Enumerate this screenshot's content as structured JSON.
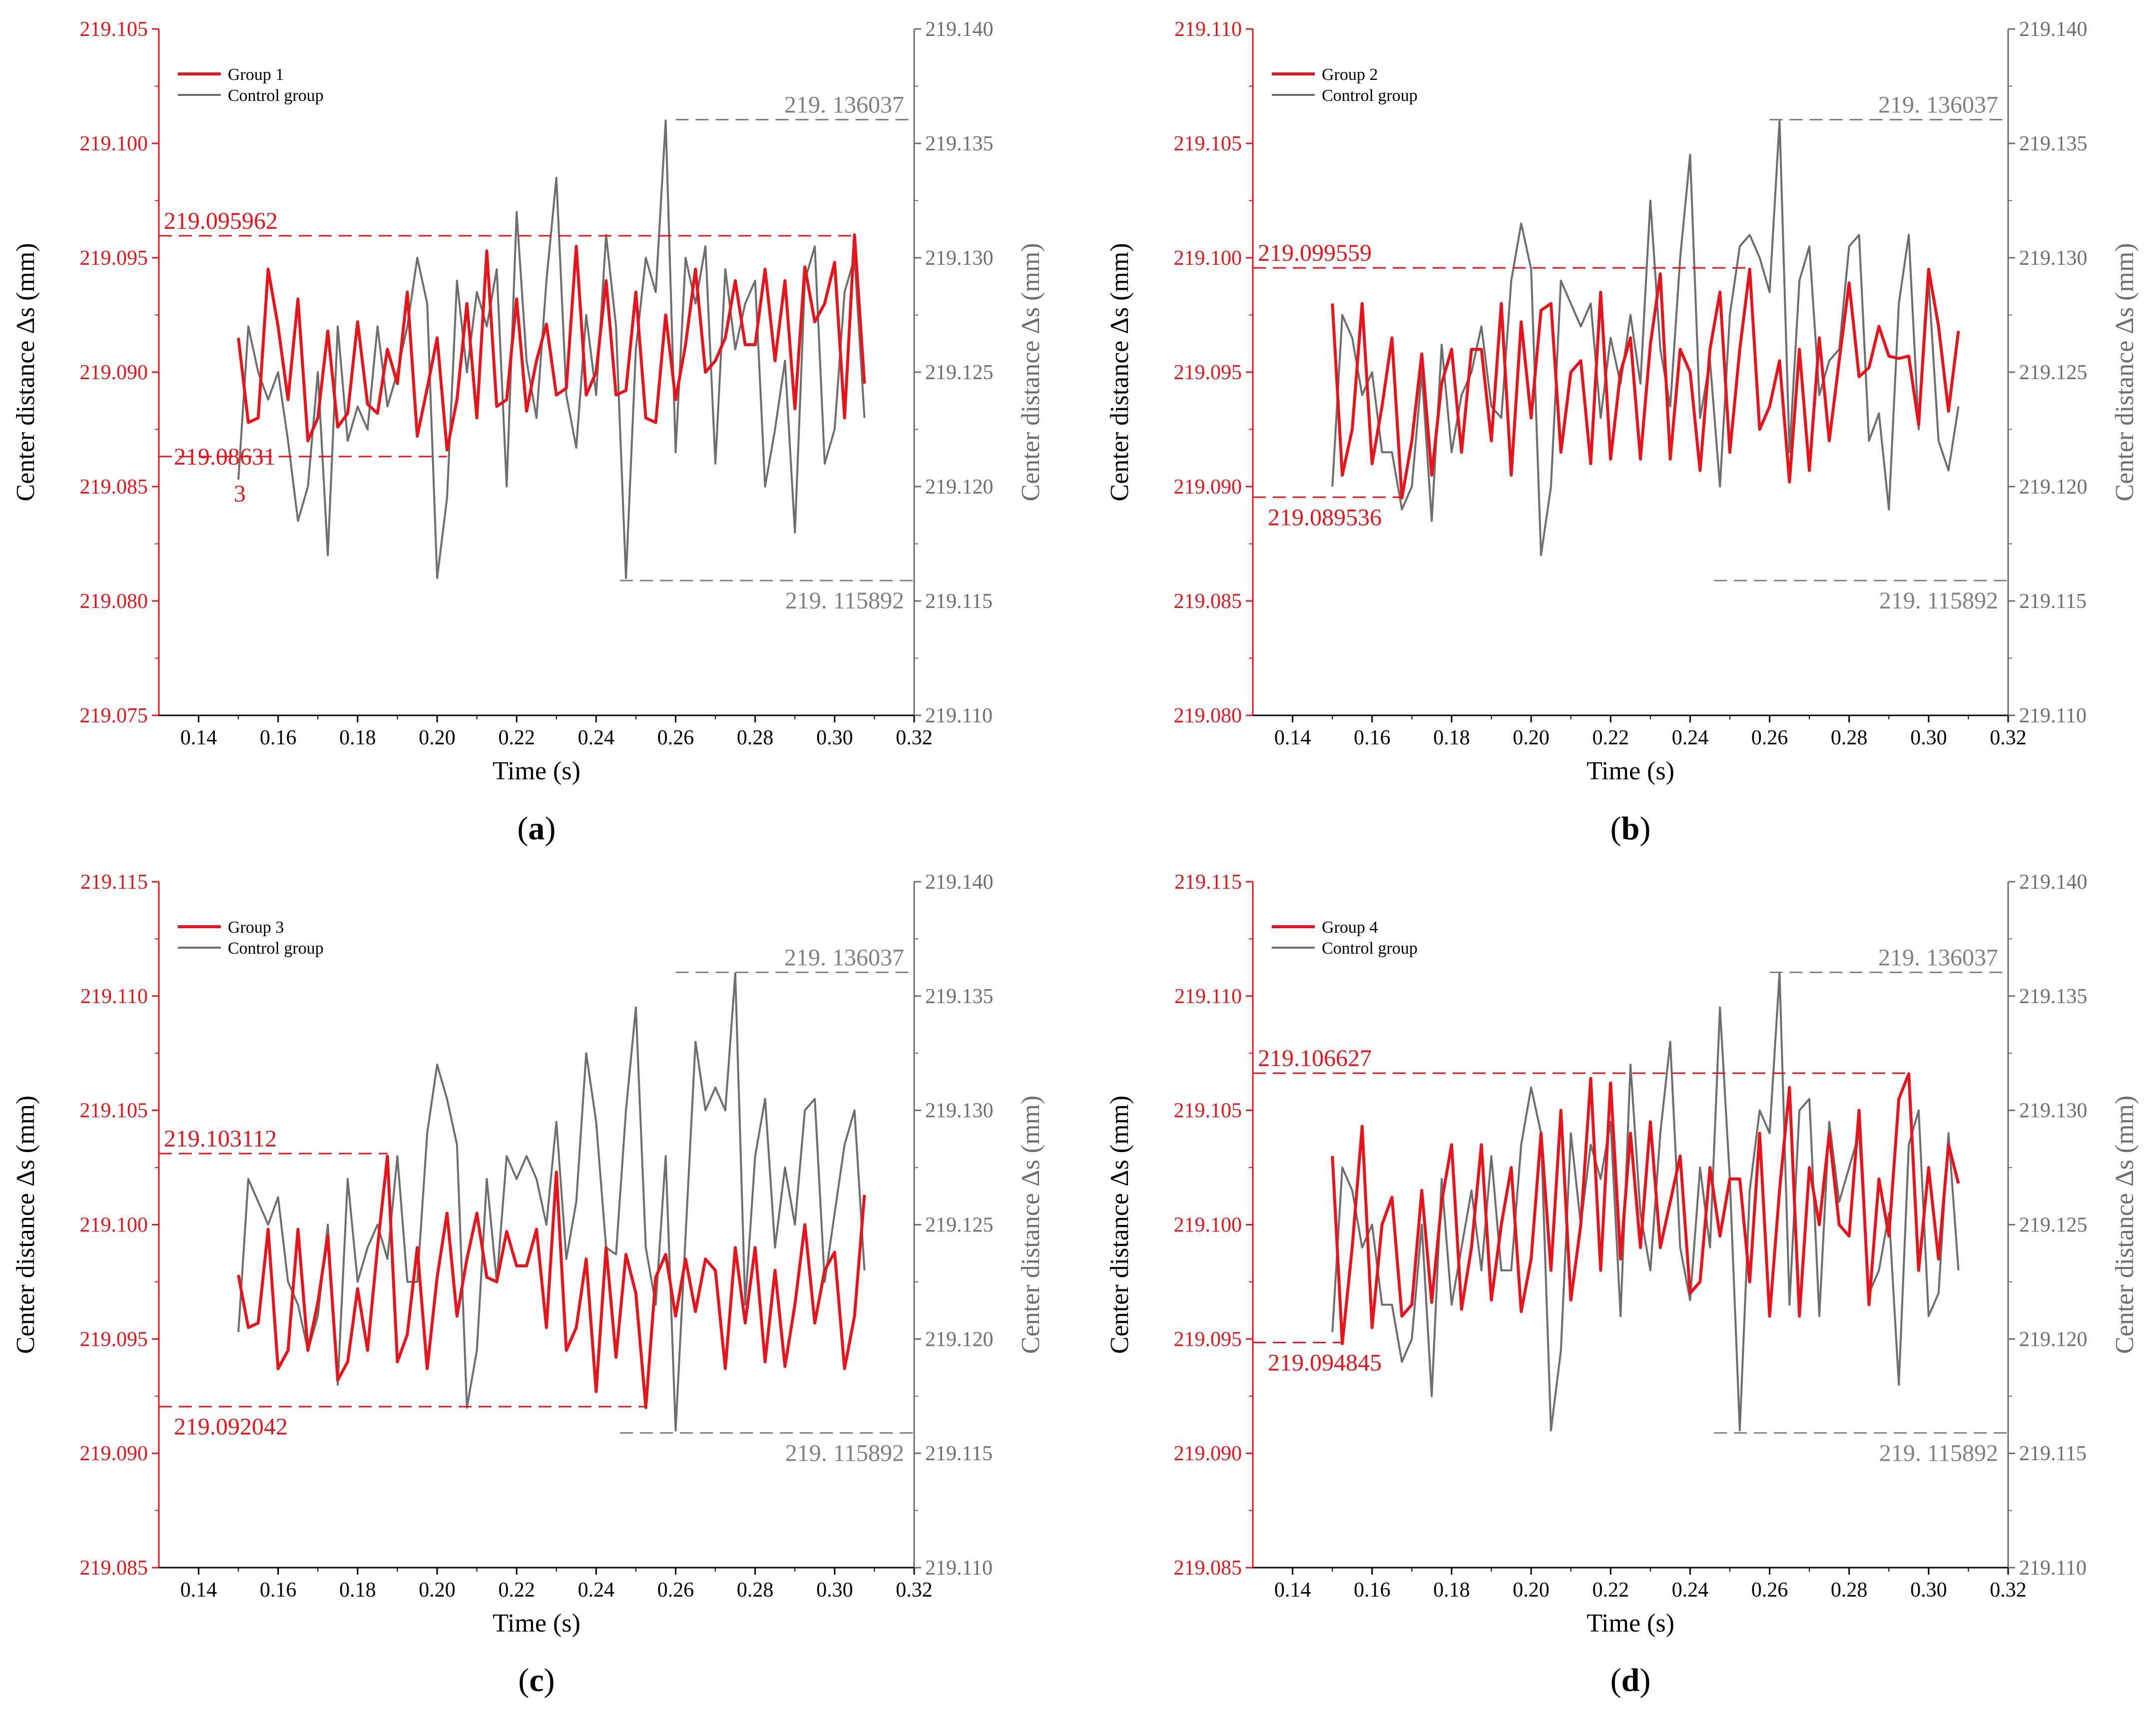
{
  "colors": {
    "group": "#e8141b",
    "control": "#6e6e6e",
    "dash_gray": "#808080"
  },
  "chart_data": [
    {
      "panel": "(a)",
      "panel_text": "a",
      "type": "line",
      "xlabel": "Time (s)",
      "ylabel_left": "Center distance Δs (mm)",
      "ylabel_right": "Center distance Δs (mm)",
      "xlim": [
        0.13,
        0.32
      ],
      "x_ticks": [
        "0.14",
        "0.16",
        "0.18",
        "0.20",
        "0.22",
        "0.24",
        "0.26",
        "0.28",
        "0.30",
        "0.32"
      ],
      "left_ylim": [
        219.075,
        219.105
      ],
      "left_ticks": [
        "219.075",
        "219.080",
        "219.085",
        "219.090",
        "219.095",
        "219.100",
        "219.105"
      ],
      "right_ylim": [
        219.11,
        219.14
      ],
      "right_ticks": [
        "219.110",
        "219.115",
        "219.120",
        "219.125",
        "219.130",
        "219.135",
        "219.140"
      ],
      "legend": [
        "Group 1",
        "Control group"
      ],
      "annotations": {
        "group_max": "219.095962",
        "group_min": "219.08631",
        "group_min_wrap": "3",
        "ctrl_max": "219. 136037",
        "ctrl_min": "219. 115892"
      },
      "group_max_value": 219.095962,
      "group_min_value": 219.086313,
      "ctrl_max_value": 219.136037,
      "ctrl_min_value": 219.115892,
      "series": [
        {
          "name": "Group 1",
          "axis": "left",
          "x_start": 0.15,
          "x_step": 0.0025,
          "values": [
            219.0915,
            219.0878,
            219.088,
            219.0945,
            219.092,
            219.0888,
            219.0932,
            219.087,
            219.088,
            219.0918,
            219.0876,
            219.0882,
            219.0922,
            219.0886,
            219.0882,
            219.091,
            219.0895,
            219.0935,
            219.0872,
            219.0893,
            219.0915,
            219.0866,
            219.0888,
            219.093,
            219.088,
            219.0953,
            219.0885,
            219.0888,
            219.0932,
            219.0883,
            219.0905,
            219.0921,
            219.089,
            219.0893,
            219.0955,
            219.089,
            219.09,
            219.094,
            219.089,
            219.0892,
            219.0935,
            219.088,
            219.0878,
            219.0925,
            219.0888,
            219.0912,
            219.0945,
            219.09,
            219.0905,
            219.0915,
            219.094,
            219.0912,
            219.0912,
            219.0945,
            219.0905,
            219.094,
            219.0884,
            219.0946,
            219.0922,
            219.093,
            219.0948,
            219.088,
            219.096,
            219.0895
          ]
        },
        {
          "name": "Control group",
          "axis": "right",
          "x_start": 0.15,
          "x_step": 0.0025,
          "values": [
            219.1203,
            219.127,
            219.125,
            219.1238,
            219.125,
            219.122,
            219.1185,
            219.12,
            219.125,
            219.117,
            219.127,
            219.122,
            219.1235,
            219.1225,
            219.127,
            219.1235,
            219.125,
            219.127,
            219.13,
            219.128,
            219.116,
            219.1195,
            219.129,
            219.125,
            219.1285,
            219.127,
            219.1295,
            219.12,
            219.132,
            219.1255,
            219.123,
            219.129,
            219.1335,
            219.124,
            219.1217,
            219.1275,
            219.124,
            219.131,
            219.127,
            219.116,
            219.126,
            219.13,
            219.1285,
            219.136,
            219.1215,
            219.13,
            219.128,
            219.1305,
            219.121,
            219.1295,
            219.126,
            219.128,
            219.129,
            219.12,
            219.1225,
            219.1255,
            219.118,
            219.129,
            219.1305,
            219.121,
            219.1225,
            219.1285,
            219.13,
            219.123
          ]
        }
      ]
    },
    {
      "panel": "(b)",
      "panel_text": "b",
      "type": "line",
      "xlabel": "Time (s)",
      "ylabel_left": "Center distance Δs (mm)",
      "ylabel_right": "Center distance Δs (mm)",
      "xlim": [
        0.13,
        0.32
      ],
      "x_ticks": [
        "0.14",
        "0.16",
        "0.18",
        "0.20",
        "0.22",
        "0.24",
        "0.26",
        "0.28",
        "0.30",
        "0.32"
      ],
      "left_ylim": [
        219.08,
        219.11
      ],
      "left_ticks": [
        "219.080",
        "219.085",
        "219.090",
        "219.095",
        "219.100",
        "219.105",
        "219.110"
      ],
      "right_ylim": [
        219.11,
        219.14
      ],
      "right_ticks": [
        "219.110",
        "219.115",
        "219.120",
        "219.125",
        "219.130",
        "219.135",
        "219.140"
      ],
      "legend": [
        "Group 2",
        "Control group"
      ],
      "annotations": {
        "group_max": "219.099559",
        "group_min": "219.089536",
        "ctrl_max": "219. 136037",
        "ctrl_min": "219. 115892"
      },
      "group_max_value": 219.099559,
      "group_min_value": 219.089536,
      "ctrl_max_value": 219.136037,
      "ctrl_min_value": 219.115892,
      "series": [
        {
          "name": "Group 2",
          "axis": "left",
          "x_start": 0.15,
          "x_step": 0.0025,
          "values": [
            219.098,
            219.0905,
            219.0925,
            219.098,
            219.091,
            219.0935,
            219.0965,
            219.0895,
            219.092,
            219.0958,
            219.0905,
            219.0945,
            219.096,
            219.0915,
            219.096,
            219.096,
            219.092,
            219.098,
            219.0905,
            219.0972,
            219.093,
            219.0977,
            219.098,
            219.0915,
            219.095,
            219.0955,
            219.091,
            219.0985,
            219.0912,
            219.095,
            219.0965,
            219.0912,
            219.0962,
            219.0993,
            219.0912,
            219.096,
            219.095,
            219.0907,
            219.096,
            219.0985,
            219.0915,
            219.096,
            219.0995,
            219.0925,
            219.0935,
            219.0955,
            219.0902,
            219.096,
            219.0907,
            219.0965,
            219.092,
            219.0955,
            219.0989,
            219.0948,
            219.0952,
            219.097,
            219.0957,
            219.0956,
            219.0957,
            219.0927,
            219.0995,
            219.097,
            219.0933,
            219.0968
          ]
        },
        {
          "name": "Control group",
          "axis": "right",
          "x_start": 0.15,
          "x_step": 0.0025,
          "values": [
            219.12,
            219.1275,
            219.1265,
            219.124,
            219.125,
            219.1215,
            219.1215,
            219.119,
            219.12,
            219.125,
            219.1185,
            219.1262,
            219.1215,
            219.124,
            219.125,
            219.127,
            219.1235,
            219.123,
            219.129,
            219.1315,
            219.1295,
            219.117,
            219.12,
            219.129,
            219.128,
            219.127,
            219.128,
            219.123,
            219.1265,
            219.1245,
            219.1275,
            219.1245,
            219.1325,
            219.126,
            219.1235,
            219.13,
            219.1345,
            219.123,
            219.1255,
            219.12,
            219.1275,
            219.1305,
            219.131,
            219.13,
            219.1285,
            219.136,
            219.1215,
            219.129,
            219.1305,
            219.124,
            219.1255,
            219.126,
            219.1305,
            219.131,
            219.122,
            219.1232,
            219.119,
            219.128,
            219.131,
            219.1225,
            219.129,
            219.122,
            219.1207,
            219.1235
          ]
        }
      ]
    },
    {
      "panel": "(c)",
      "panel_text": "c",
      "type": "line",
      "xlabel": "Time (s)",
      "ylabel_left": "Center distance Δs (mm)",
      "ylabel_right": "Center distance Δs (mm)",
      "xlim": [
        0.13,
        0.32
      ],
      "x_ticks": [
        "0.14",
        "0.16",
        "0.18",
        "0.20",
        "0.22",
        "0.24",
        "0.26",
        "0.28",
        "0.30",
        "0.32"
      ],
      "left_ylim": [
        219.085,
        219.115
      ],
      "left_ticks": [
        "219.085",
        "219.090",
        "219.095",
        "219.100",
        "219.105",
        "219.110",
        "219.115"
      ],
      "right_ylim": [
        219.11,
        219.14
      ],
      "right_ticks": [
        "219.110",
        "219.115",
        "219.120",
        "219.125",
        "219.130",
        "219.135",
        "219.140"
      ],
      "legend": [
        "Group 3",
        "Control group"
      ],
      "annotations": {
        "group_max": "219.103112",
        "group_min": "219.092042",
        "ctrl_max": "219. 136037",
        "ctrl_min": "219. 115892"
      },
      "group_max_value": 219.103112,
      "group_min_value": 219.092042,
      "ctrl_max_value": 219.136037,
      "ctrl_min_value": 219.115892,
      "series": [
        {
          "name": "Group 3",
          "axis": "left",
          "x_start": 0.15,
          "x_step": 0.0025,
          "values": [
            219.0978,
            219.0955,
            219.0957,
            219.0998,
            219.0937,
            219.0945,
            219.0998,
            219.0945,
            219.0966,
            219.0995,
            219.0932,
            219.094,
            219.0972,
            219.0945,
            219.099,
            219.103,
            219.094,
            219.0952,
            219.099,
            219.0937,
            219.0977,
            219.1005,
            219.096,
            219.0985,
            219.1005,
            219.0977,
            219.0975,
            219.0997,
            219.0982,
            219.0982,
            219.0998,
            219.0955,
            219.1023,
            219.0945,
            219.0955,
            219.0985,
            219.0927,
            219.099,
            219.0942,
            219.0987,
            219.097,
            219.092,
            219.0977,
            219.0987,
            219.096,
            219.0985,
            219.0962,
            219.0985,
            219.098,
            219.0937,
            219.099,
            219.0957,
            219.099,
            219.094,
            219.098,
            219.0938,
            219.0965,
            219.1,
            219.0957,
            219.098,
            219.0988,
            219.0937,
            219.096,
            219.1013
          ]
        },
        {
          "name": "Control group",
          "axis": "right",
          "x_start": 0.15,
          "x_step": 0.0025,
          "values": [
            219.1203,
            219.127,
            219.126,
            219.125,
            219.1262,
            219.1225,
            219.1215,
            219.1195,
            219.121,
            219.125,
            219.118,
            219.127,
            219.1225,
            219.124,
            219.125,
            219.1235,
            219.128,
            219.1225,
            219.1225,
            219.129,
            219.132,
            219.1305,
            219.1285,
            219.117,
            219.1195,
            219.127,
            219.1225,
            219.128,
            219.127,
            219.128,
            219.127,
            219.125,
            219.1295,
            219.1235,
            219.126,
            219.1325,
            219.1295,
            219.124,
            219.1237,
            219.13,
            219.1345,
            219.124,
            219.1215,
            219.128,
            219.116,
            219.1245,
            219.133,
            219.13,
            219.131,
            219.13,
            219.136,
            219.1215,
            219.128,
            219.1305,
            219.124,
            219.1275,
            219.125,
            219.13,
            219.1305,
            219.1225,
            219.1255,
            219.1285,
            219.13,
            219.123
          ]
        }
      ]
    },
    {
      "panel": "(d)",
      "panel_text": "d",
      "type": "line",
      "xlabel": "Time (s)",
      "ylabel_left": "Center distance Δs (mm)",
      "ylabel_right": "Center distance Δs (mm)",
      "xlim": [
        0.13,
        0.32
      ],
      "x_ticks": [
        "0.14",
        "0.16",
        "0.18",
        "0.20",
        "0.22",
        "0.24",
        "0.26",
        "0.28",
        "0.30",
        "0.32"
      ],
      "left_ylim": [
        219.085,
        219.115
      ],
      "left_ticks": [
        "219.085",
        "219.090",
        "219.095",
        "219.100",
        "219.105",
        "219.110",
        "219.115"
      ],
      "right_ylim": [
        219.11,
        219.14
      ],
      "right_ticks": [
        "219.110",
        "219.115",
        "219.120",
        "219.125",
        "219.130",
        "219.135",
        "219.140"
      ],
      "legend": [
        "Group 4",
        "Control group"
      ],
      "annotations": {
        "group_max": "219.106627",
        "group_min": "219.094845",
        "ctrl_max": "219. 136037",
        "ctrl_min": "219. 115892"
      },
      "group_max_value": 219.106627,
      "group_min_value": 219.094845,
      "ctrl_max_value": 219.136037,
      "ctrl_min_value": 219.115892,
      "series": [
        {
          "name": "Group 4",
          "axis": "left",
          "x_start": 0.15,
          "x_step": 0.0025,
          "values": [
            219.103,
            219.0948,
            219.099,
            219.1043,
            219.0955,
            219.1,
            219.1012,
            219.096,
            219.0965,
            219.1015,
            219.0966,
            219.101,
            219.1035,
            219.0963,
            219.099,
            219.1035,
            219.0967,
            219.1,
            219.1025,
            219.0962,
            219.0985,
            219.104,
            219.098,
            219.105,
            219.0967,
            219.1,
            219.1064,
            219.098,
            219.1062,
            219.0985,
            219.104,
            219.099,
            219.1045,
            219.099,
            219.101,
            219.103,
            219.097,
            219.0975,
            219.1025,
            219.0995,
            219.102,
            219.102,
            219.0975,
            219.104,
            219.096,
            219.1015,
            219.106,
            219.096,
            219.1025,
            219.1,
            219.104,
            219.1,
            219.0995,
            219.105,
            219.0965,
            219.102,
            219.0995,
            219.1055,
            219.1066,
            219.098,
            219.1025,
            219.0985,
            219.1035,
            219.1018
          ]
        },
        {
          "name": "Control group",
          "axis": "right",
          "x_start": 0.15,
          "x_step": 0.0025,
          "values": [
            219.1203,
            219.1275,
            219.1265,
            219.124,
            219.125,
            219.1215,
            219.1215,
            219.119,
            219.12,
            219.125,
            219.1175,
            219.127,
            219.1215,
            219.124,
            219.1265,
            219.123,
            219.128,
            219.123,
            219.123,
            219.1285,
            219.131,
            219.129,
            219.116,
            219.1195,
            219.129,
            219.125,
            219.1285,
            219.127,
            219.1295,
            219.121,
            219.132,
            219.1255,
            219.123,
            219.129,
            219.133,
            219.124,
            219.1217,
            219.1275,
            219.124,
            219.1345,
            219.127,
            219.116,
            219.1265,
            219.13,
            219.129,
            219.136,
            219.1215,
            219.13,
            219.1305,
            219.121,
            219.1295,
            219.126,
            219.1275,
            219.129,
            219.122,
            219.123,
            219.1255,
            219.118,
            219.1285,
            219.13,
            219.121,
            219.122,
            219.129,
            219.123
          ]
        }
      ]
    }
  ]
}
